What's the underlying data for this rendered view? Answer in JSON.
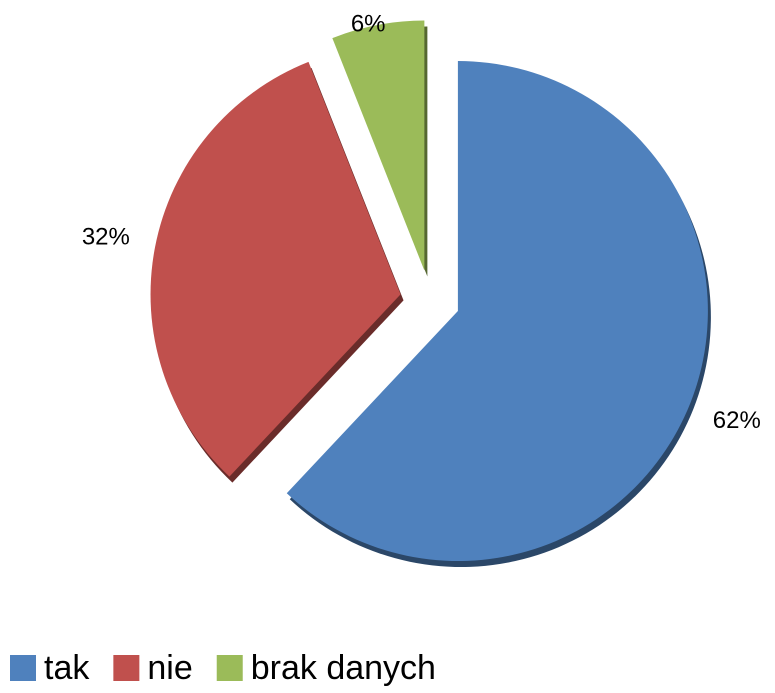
{
  "chart_data": {
    "type": "pie",
    "categories": [
      "tak",
      "nie",
      "brak danych"
    ],
    "values": [
      62,
      32,
      6
    ],
    "value_labels": [
      "62%",
      "32%",
      "6%"
    ],
    "colors": [
      "#4f81bd",
      "#c0504d",
      "#9bbb59"
    ],
    "legend": "bottom"
  }
}
